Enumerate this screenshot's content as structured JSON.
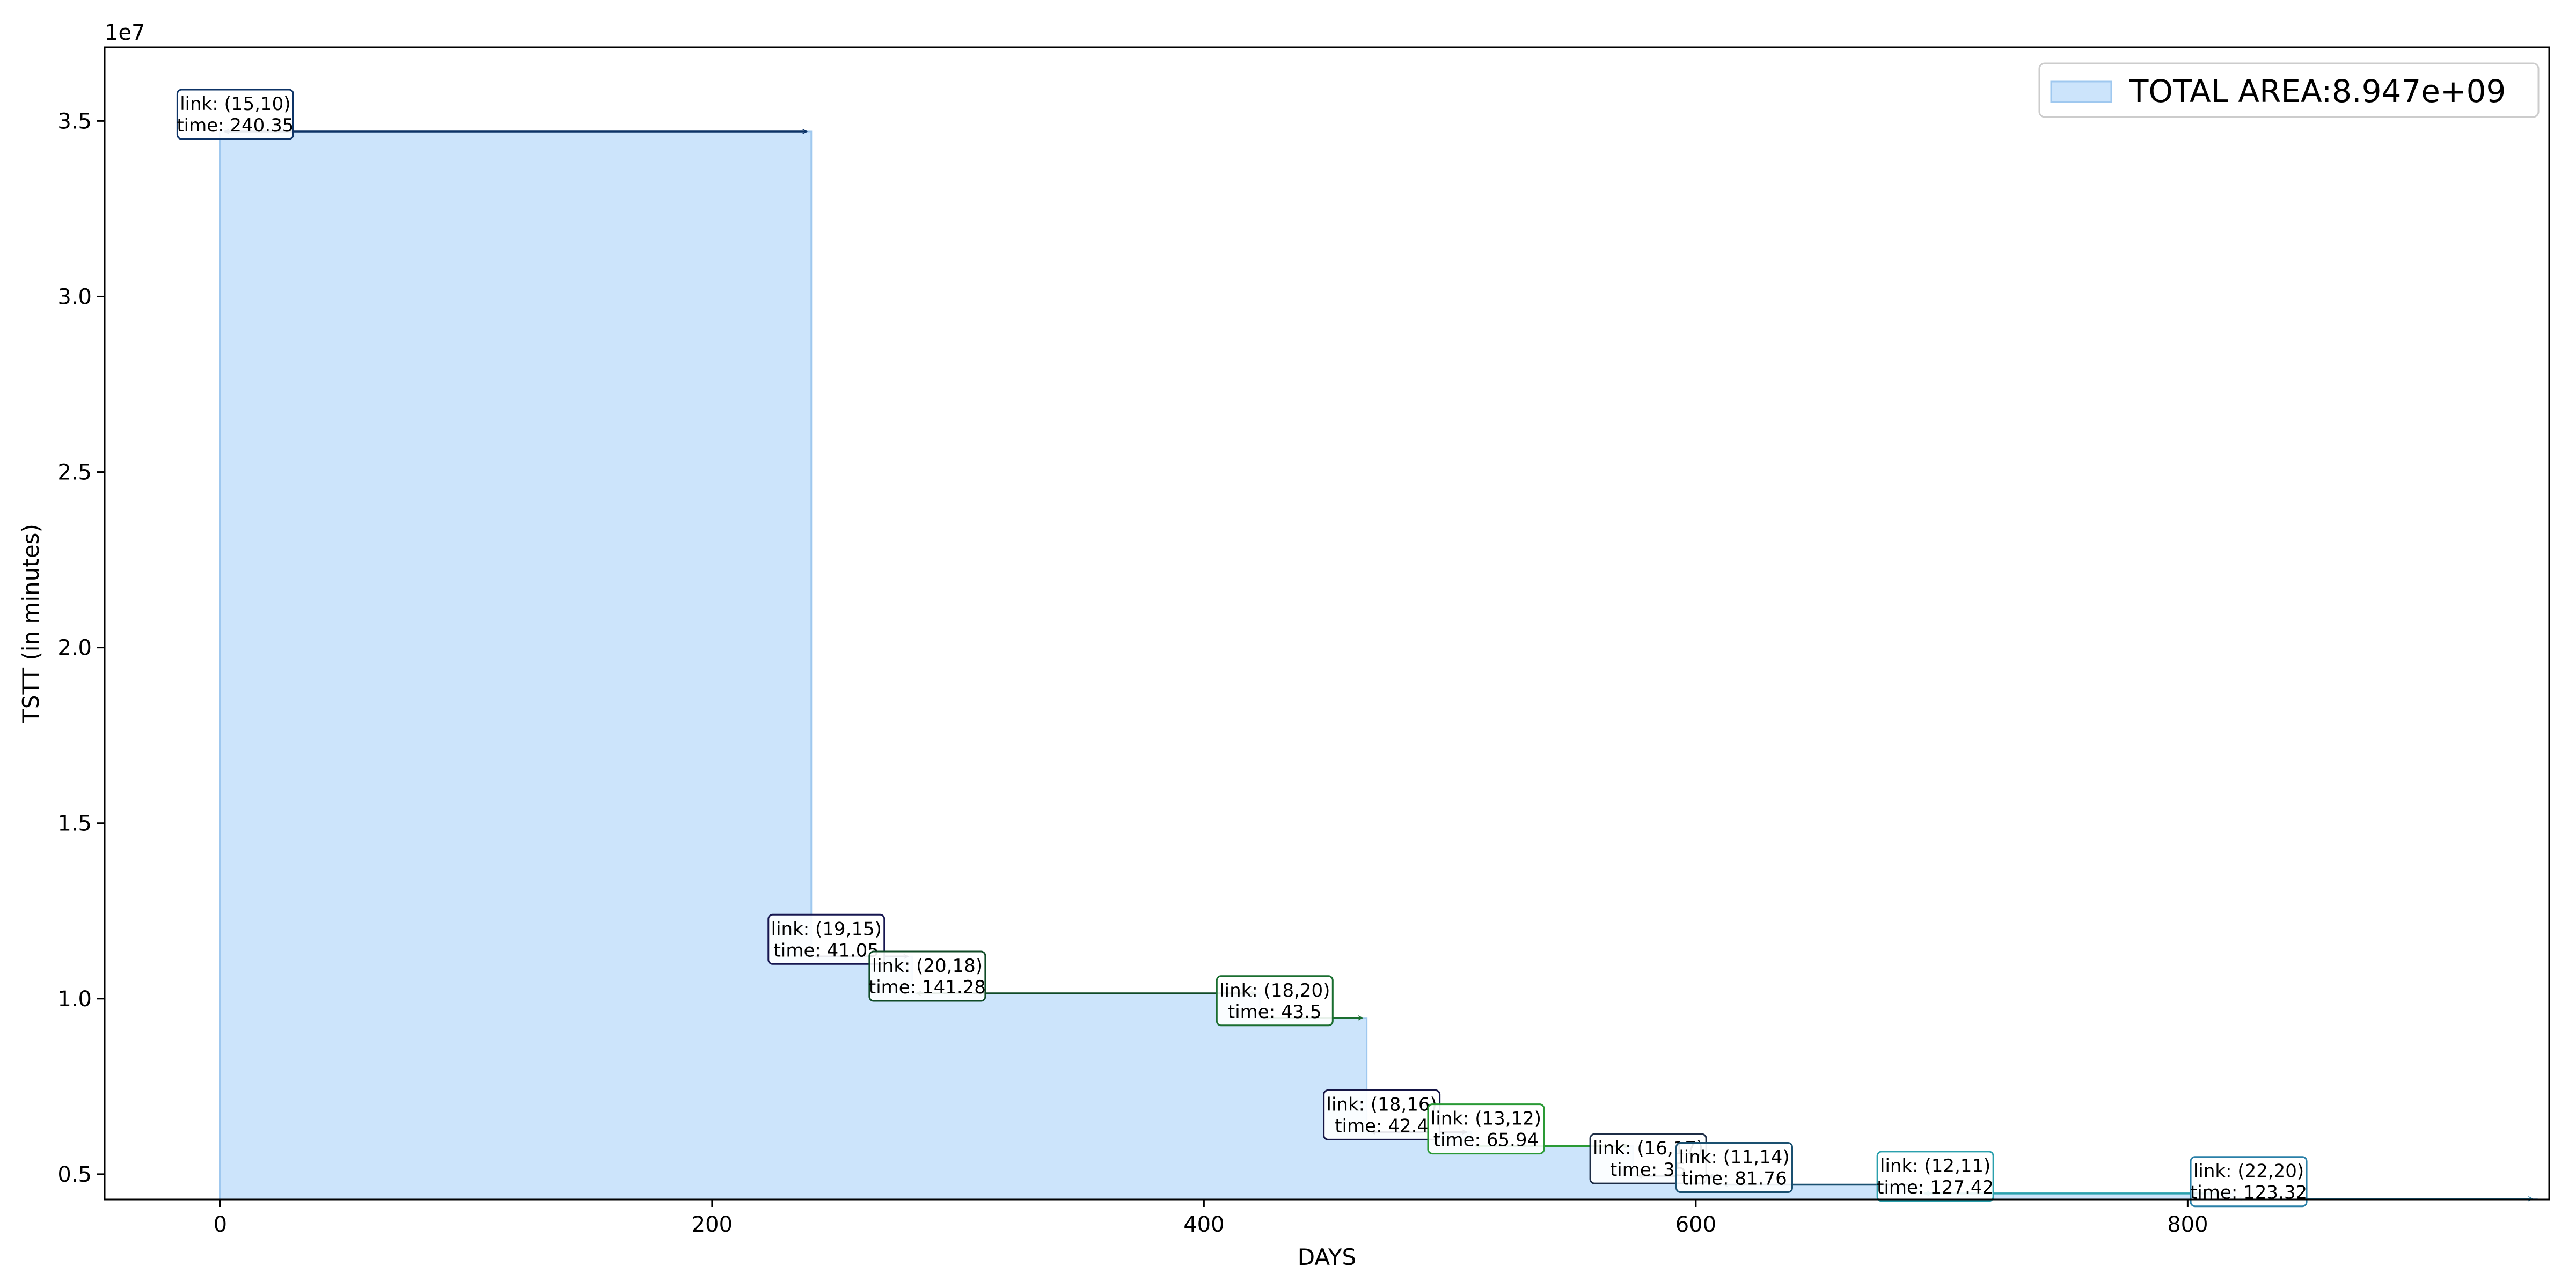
{
  "chart_data": {
    "type": "area",
    "step": true,
    "xlabel": "DAYS",
    "ylabel": "TSTT (in minutes)",
    "y_scale_label": "1e7",
    "xlim": [
      -47,
      947
    ],
    "ylim": [
      4280000.0,
      37100000.0
    ],
    "x_ticks": [
      0,
      200,
      400,
      600,
      800
    ],
    "x_tick_labels": [
      "0",
      "200",
      "400",
      "600",
      "800"
    ],
    "y_ticks": [
      5000000,
      10000000,
      15000000,
      20000000,
      25000000,
      30000000,
      35000000
    ],
    "y_tick_labels": [
      "0.5",
      "1.0",
      "1.5",
      "2.0",
      "2.5",
      "3.0",
      "3.5"
    ],
    "grid": false,
    "legend": {
      "position": "top-right",
      "label": "TOTAL AREA:8.947e+09",
      "color": "#cce4fb"
    },
    "fill_color": "#cce4fb",
    "edge_color": "#9fc8ef",
    "segments": [
      {
        "start": 0,
        "end": 240.35,
        "y": 34700000,
        "label_line1": "link: (15,10)",
        "label_line2": "time: 240.35",
        "color": "#0d3366"
      },
      {
        "start": 240.35,
        "end": 281.4,
        "y": 11200000,
        "label_line1": "link: (19,15)",
        "label_line2": "time: 41.05",
        "color": "#161650"
      },
      {
        "start": 281.4,
        "end": 422.68,
        "y": 10150000,
        "label_line1": "link: (20,18)",
        "label_line2": "time: 141.28",
        "color": "#0f4a26"
      },
      {
        "start": 422.68,
        "end": 466.18,
        "y": 9450000,
        "label_line1": "link: (18,20)",
        "label_line2": "time: 43.5",
        "color": "#1a6e30"
      },
      {
        "start": 466.18,
        "end": 508.58,
        "y": 6200000,
        "label_line1": "link: (18,16)",
        "label_line2": "time: 42.4",
        "color": "#151545"
      },
      {
        "start": 508.58,
        "end": 574.52,
        "y": 5800000,
        "label_line1": "link: (13,12)",
        "label_line2": "time: 65.94",
        "color": "#2a9a35"
      },
      {
        "start": 574.52,
        "end": 609.52,
        "y": 4950000,
        "label_line1": "link: (16,17)",
        "label_line2": "time: 35",
        "color": "#1c2c45"
      },
      {
        "start": 609.52,
        "end": 691.28,
        "y": 4700000,
        "label_line1": "link: (11,14)",
        "label_line2": "time: 81.76",
        "color": "#1a5070"
      },
      {
        "start": 691.28,
        "end": 818.7,
        "y": 4450000,
        "label_line1": "link: (12,11)",
        "label_line2": "time: 127.42",
        "color": "#2aa0ad"
      },
      {
        "start": 818.7,
        "end": 942.02,
        "y": 4300000,
        "label_line1": "link: (22,20)",
        "label_line2": "time: 123.32",
        "color": "#2a80a8"
      }
    ]
  }
}
